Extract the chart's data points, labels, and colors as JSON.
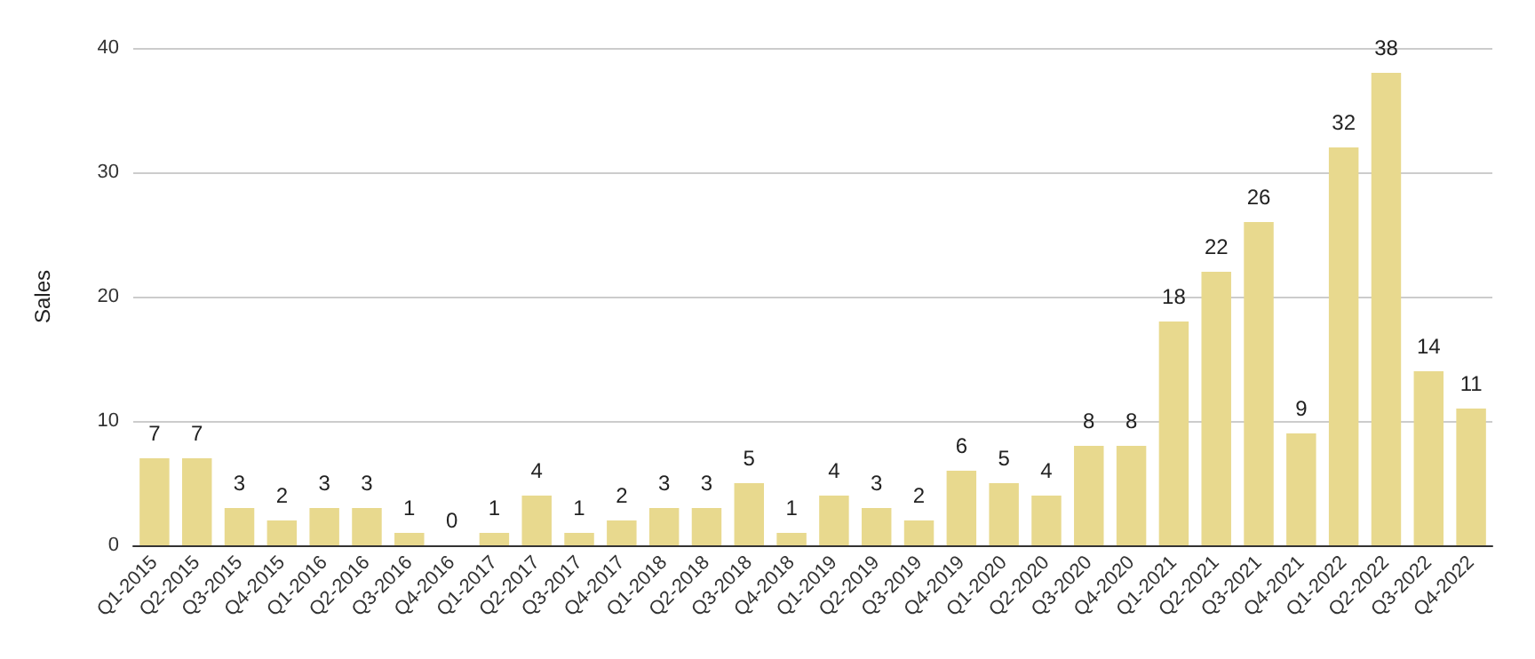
{
  "chart_data": {
    "type": "bar",
    "ylabel": "Sales",
    "categories": [
      "Q1-2015",
      "Q2-2015",
      "Q3-2015",
      "Q4-2015",
      "Q1-2016",
      "Q2-2016",
      "Q3-2016",
      "Q4-2016",
      "Q1-2017",
      "Q2-2017",
      "Q3-2017",
      "Q4-2017",
      "Q1-2018",
      "Q2-2018",
      "Q3-2018",
      "Q4-2018",
      "Q1-2019",
      "Q2-2019",
      "Q3-2019",
      "Q4-2019",
      "Q1-2020",
      "Q2-2020",
      "Q3-2020",
      "Q4-2020",
      "Q1-2021",
      "Q2-2021",
      "Q3-2021",
      "Q4-2021",
      "Q1-2022",
      "Q2-2022",
      "Q3-2022",
      "Q4-2022"
    ],
    "values": [
      7,
      7,
      3,
      2,
      3,
      3,
      1,
      0,
      1,
      4,
      1,
      2,
      3,
      3,
      5,
      1,
      4,
      3,
      2,
      6,
      5,
      4,
      8,
      8,
      18,
      22,
      26,
      9,
      32,
      38,
      14,
      11
    ],
    "color": "#e8d98e",
    "ylim": [
      0,
      40
    ],
    "yticks": [
      0,
      10,
      20,
      30,
      40
    ],
    "grid": "y",
    "data_labels": true
  }
}
